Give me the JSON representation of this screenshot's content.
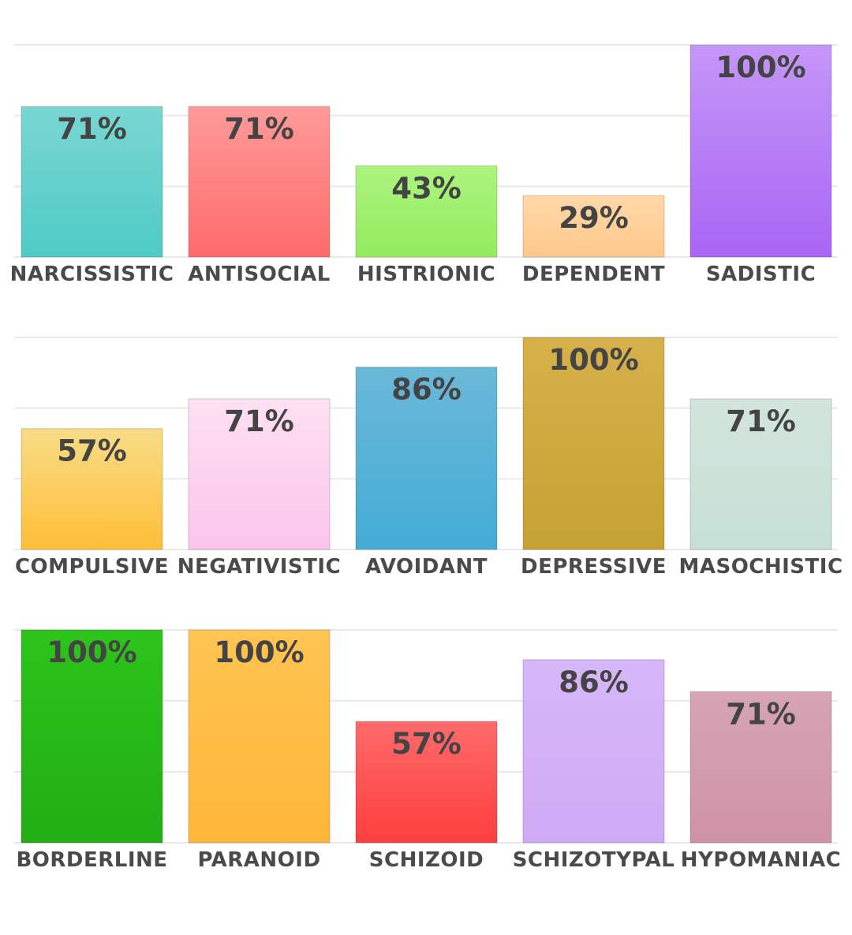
{
  "chart_data": [
    {
      "type": "bar",
      "categories": [
        "NARCISSISTIC",
        "ANTISOCIAL",
        "HISTRIONIC",
        "DEPENDENT",
        "SADISTIC"
      ],
      "values": [
        71,
        71,
        43,
        29,
        100
      ],
      "value_labels": [
        "71%",
        "71%",
        "43%",
        "29%",
        "100%"
      ],
      "colors": [
        [
          "#7ad6d2",
          "#4ecbc6"
        ],
        [
          "#ff9a9a",
          "#ff6a6a"
        ],
        [
          "#acf47e",
          "#93ec5e"
        ],
        [
          "#ffd8a8",
          "#ffc88c"
        ],
        [
          "#c596f8",
          "#a965f4"
        ]
      ],
      "ylim": [
        0,
        100
      ],
      "grid": true
    },
    {
      "type": "bar",
      "categories": [
        "COMPULSIVE",
        "NEGATIVISTIC",
        "AVOIDANT",
        "DEPRESSIVE",
        "MASOCHISTIC"
      ],
      "values": [
        57,
        71,
        86,
        100,
        71
      ],
      "value_labels": [
        "57%",
        "71%",
        "86%",
        "100%",
        "71%"
      ],
      "colors": [
        [
          "#f8dc86",
          "#ffbe38"
        ],
        [
          "#fde0f2",
          "#fcc4eb"
        ],
        [
          "#6ab8d8",
          "#44acd6"
        ],
        [
          "#d6b04a",
          "#c6a232"
        ],
        [
          "#d2e4dc",
          "#c6e0d6"
        ]
      ],
      "ylim": [
        0,
        100
      ],
      "grid": true
    },
    {
      "type": "bar",
      "categories": [
        "BORDERLINE",
        "PARANOID",
        "SCHIZOID",
        "SCHIZOTYPAL",
        "HYPOMANIAC"
      ],
      "values": [
        100,
        100,
        57,
        86,
        71
      ],
      "value_labels": [
        "100%",
        "100%",
        "57%",
        "86%",
        "71%"
      ],
      "colors": [
        [
          "#2cc41a",
          "#22ae14"
        ],
        [
          "#ffc452",
          "#ffb638"
        ],
        [
          "#ff6a6a",
          "#ff3e3e"
        ],
        [
          "#d6b6f8",
          "#d0aaf6"
        ],
        [
          "#d6a4b4",
          "#cf92a8"
        ]
      ],
      "ylim": [
        0,
        100
      ],
      "grid": true
    }
  ]
}
